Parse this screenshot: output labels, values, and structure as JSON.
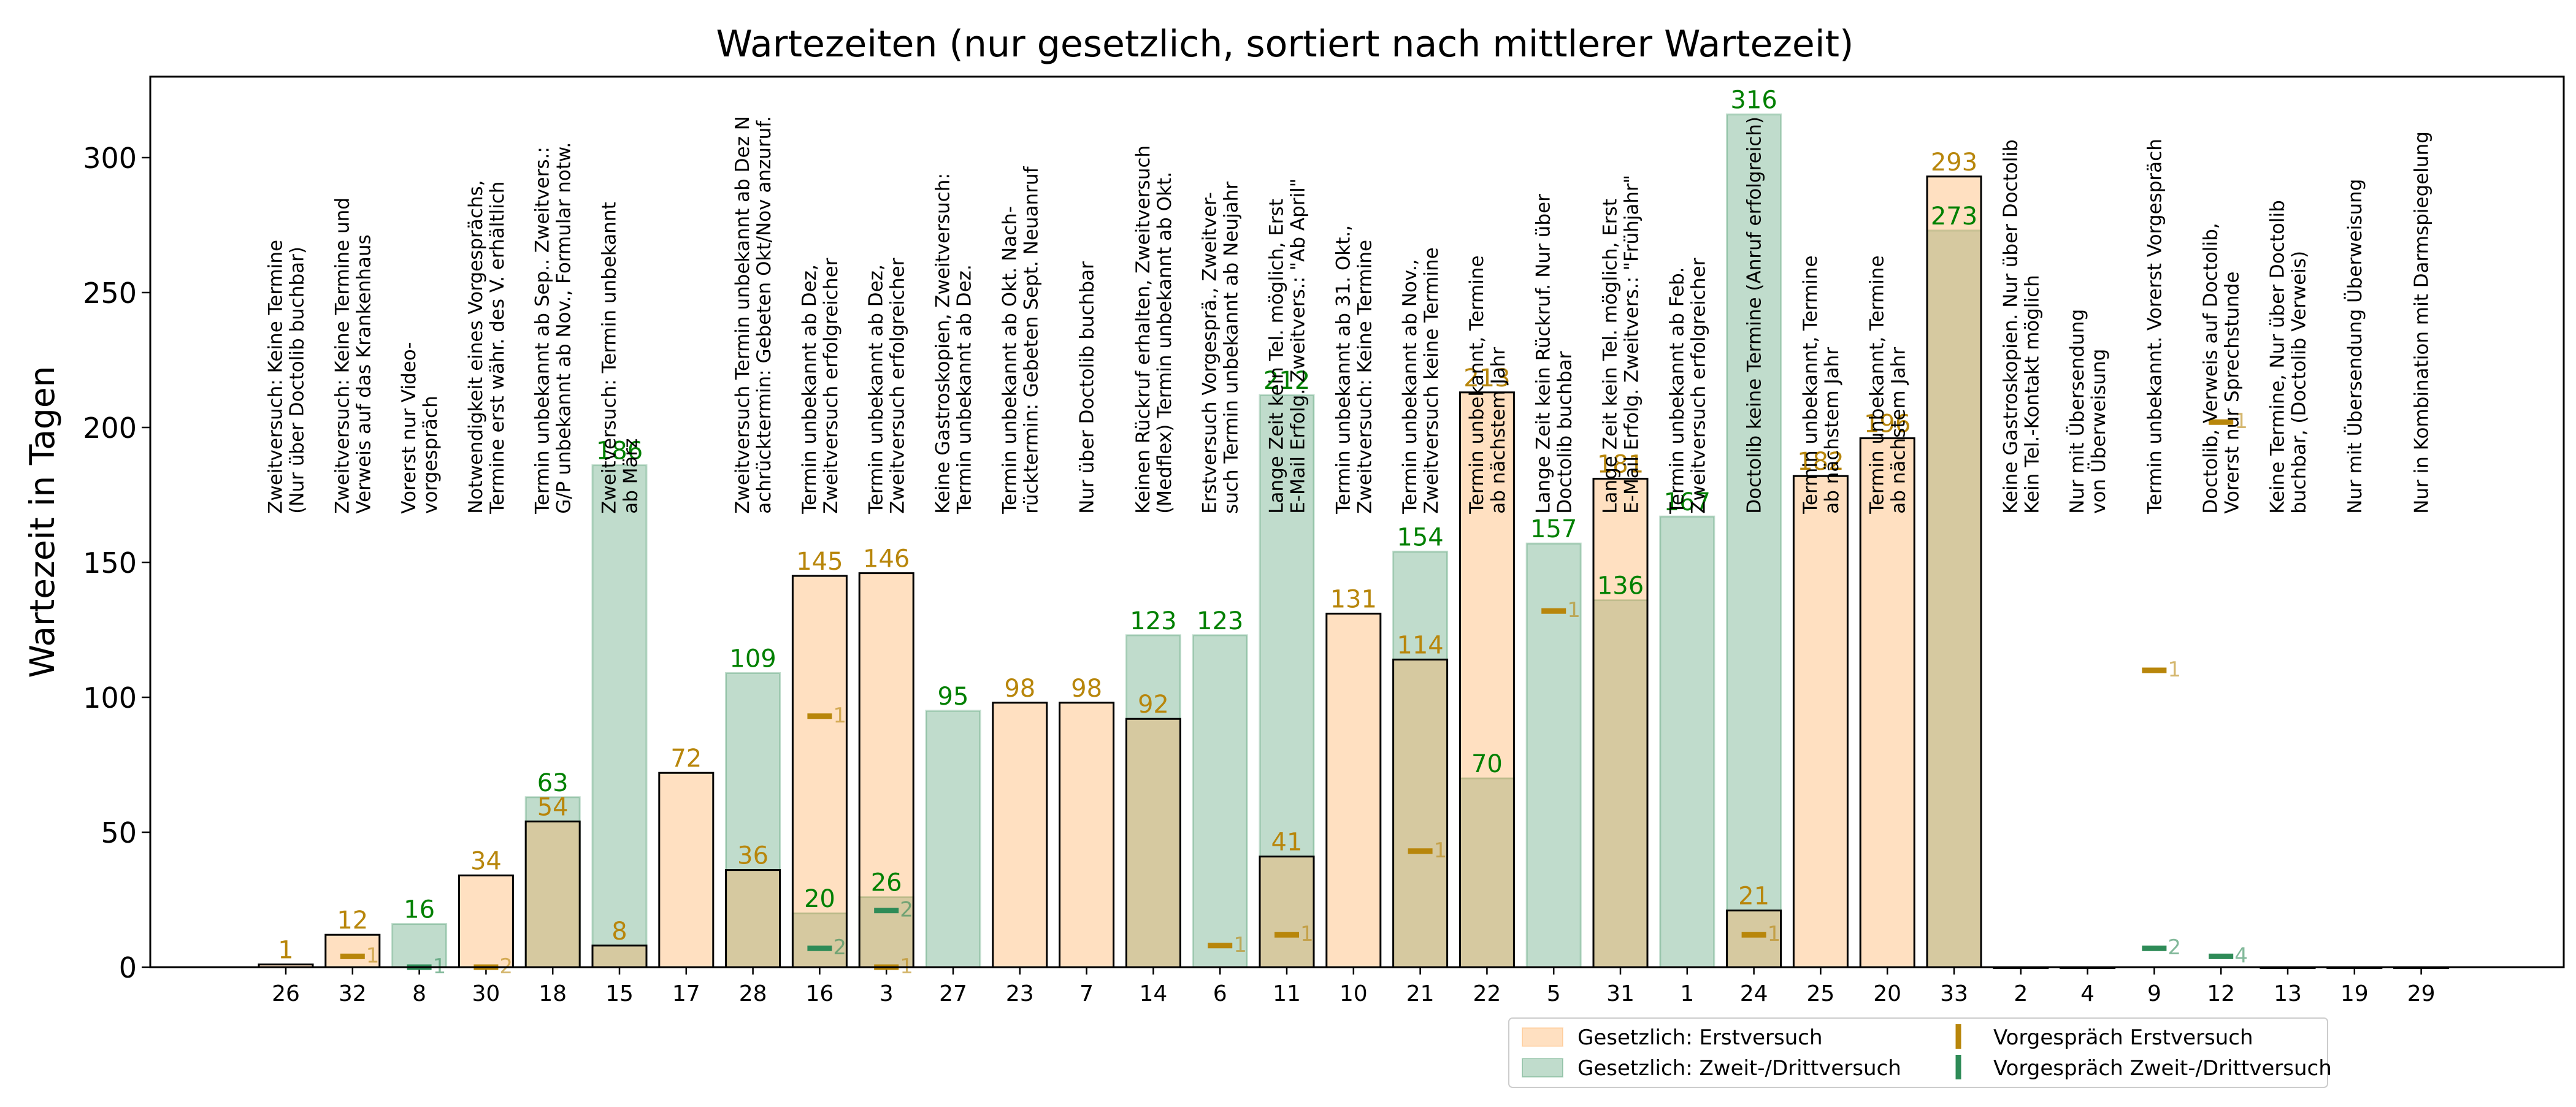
{
  "chart_data": {
    "type": "bar",
    "title": "Wartezeiten (nur gesetzlich, sortiert nach mittlerer Wartezeit)",
    "ylabel": "Wartezeit in Tagen",
    "xlabel": "",
    "ylim": [
      0,
      330
    ],
    "yticks": [
      0,
      50,
      100,
      150,
      200,
      250,
      300
    ],
    "grid": false,
    "legend_position": "bottom-right",
    "colors": {
      "erst_fill": "#ffe4c4",
      "zweit_fill": "#bcdccb",
      "overlap_fill": "#c2c9a2",
      "erst_text": "#b8860b",
      "zweit_text": "#008000",
      "erst_marker": "#b8860b",
      "zweit_marker": "#2e8b57"
    },
    "categories": [
      "26",
      "32",
      "8",
      "30",
      "18",
      "15",
      "17",
      "28",
      "16",
      "3",
      "27",
      "23",
      "7",
      "14",
      "6",
      "11",
      "10",
      "21",
      "22",
      "5",
      "31",
      "1",
      "24",
      "25",
      "20",
      "33",
      "2",
      "4",
      "9",
      "12",
      "13",
      "19",
      "29"
    ],
    "series": [
      {
        "name": "Gesetzlich: Erstversuch",
        "values": [
          1,
          12,
          null,
          34,
          54,
          8,
          72,
          36,
          145,
          146,
          null,
          98,
          98,
          92,
          null,
          41,
          131,
          114,
          213,
          null,
          181,
          null,
          21,
          182,
          196,
          293,
          0,
          0,
          null,
          null,
          0,
          0,
          0
        ]
      },
      {
        "name": "Gesetzlich: Zweit-/Drittversuch",
        "values": [
          null,
          null,
          16,
          null,
          63,
          186,
          null,
          109,
          20,
          26,
          95,
          null,
          null,
          123,
          123,
          212,
          null,
          154,
          70,
          157,
          136,
          167,
          316,
          null,
          null,
          273,
          null,
          null,
          null,
          null,
          null,
          null,
          null
        ]
      }
    ],
    "vorgespraech_erst": [
      {
        "x": "32",
        "value": 4,
        "count": "1"
      },
      {
        "x": "30",
        "value": 0,
        "count": "2"
      },
      {
        "x": "16",
        "value": 93,
        "count": "1"
      },
      {
        "x": "3",
        "value": 0,
        "count": "1"
      },
      {
        "x": "6",
        "value": 8,
        "count": "1"
      },
      {
        "x": "11",
        "value": 12,
        "count": "1"
      },
      {
        "x": "21",
        "value": 43,
        "count": "1"
      },
      {
        "x": "5",
        "value": 132,
        "count": "1"
      },
      {
        "x": "24",
        "value": 12,
        "count": "1"
      },
      {
        "x": "9",
        "value": 110,
        "count": "1"
      },
      {
        "x": "12",
        "value": 202,
        "count": "1"
      }
    ],
    "vorgespraech_zweit": [
      {
        "x": "8",
        "value": 0,
        "count": "1"
      },
      {
        "x": "16",
        "value": 7,
        "count": "2"
      },
      {
        "x": "3",
        "value": 21,
        "count": "2"
      },
      {
        "x": "9",
        "value": 7,
        "count": "2"
      },
      {
        "x": "12",
        "value": 4,
        "count": "4"
      }
    ],
    "bar_labels": [
      {
        "x": "26",
        "text": "Zweitversuch: Keine Termine\n(Nur über Doctolib buchbar)"
      },
      {
        "x": "32",
        "text": "Zweitversuch: Keine Termine und\nVerweis auf das Krankenhaus"
      },
      {
        "x": "8",
        "text": "Vorerst nur Video-\nvorgespräch"
      },
      {
        "x": "30",
        "text": "Notwendigkeit eines Vorgesprächs,\nTermine erst währ. des V. erhältlich"
      },
      {
        "x": "18",
        "text": "Termin unbekannt ab Sep.. Zweitvers.:\nG/P unbekannt ab Nov., Formular notw."
      },
      {
        "x": "15",
        "text": "Zweitversuch: Termin unbekannt\nab März"
      },
      {
        "x": "28",
        "text": "Zweitversuch Termin unbekannt ab Dez N\nachrücktermin: Gebeten Okt/Nov anzuruf."
      },
      {
        "x": "16",
        "text": "Termin unbekannt ab Dez,\nZweitversuch erfolgreicher"
      },
      {
        "x": "3",
        "text": "Termin unbekannt ab Dez,\nZweitversuch erfolgreicher"
      },
      {
        "x": "27",
        "text": "Keine Gastroskopien, Zweitversuch:\nTermin unbekannt ab Dez."
      },
      {
        "x": "23",
        "text": "Termin unbekannt ab Okt. Nach-\nrücktermin: Gebeten Sept. Neuanruf"
      },
      {
        "x": "7",
        "text": "Nur über Doctolib buchbar"
      },
      {
        "x": "14",
        "text": "Keinen Rückruf erhalten, Zweitversuch\n(Medflex) Termin unbekannt ab Okt."
      },
      {
        "x": "6",
        "text": "Erstversuch Vorgesprä., Zweitver-\nsuch Termin unbekannt ab Neujahr"
      },
      {
        "x": "11",
        "text": "Lange Zeit kein Tel. möglich, Erst\nE-Mail Erfolg. Zweitvers.: \"Ab April\""
      },
      {
        "x": "10",
        "text": "Termin unbekannt ab 31. Okt.,\nZweitversuch: Keine Termine"
      },
      {
        "x": "21",
        "text": "Termin unbekannt ab Nov.,\nZweitversuch keine Termine"
      },
      {
        "x": "22",
        "text": "Termin unbekannt, Termine\nab nächstem Jahr"
      },
      {
        "x": "5",
        "text": "Lange Zeit kein Rückruf. Nur über\nDoctolib buchbar"
      },
      {
        "x": "31",
        "text": "Lange Zeit kein Tel. möglich, Erst\nE-Mail Erfolg. Zweitvers.: \"Frühjahr\""
      },
      {
        "x": "1",
        "text": "Termin unbekannt ab Feb.\nZweitversuch erfolgreicher"
      },
      {
        "x": "24",
        "text": "Doctolib keine Termine (Anruf erfolgreich)"
      },
      {
        "x": "25",
        "text": "Termin unbekannt, Termine\nab nächstem Jahr"
      },
      {
        "x": "20",
        "text": "Termin unbekannt, Termine\nab nächstem Jahr"
      },
      {
        "x": "2",
        "text": "Keine Gastroskopien. Nur über Doctolib\nKein Tel.-Kontakt möglich"
      },
      {
        "x": "4",
        "text": "Nur mit Übersendung\nvon Überweisung"
      },
      {
        "x": "9",
        "text": "Termin unbekannt. Vorerst Vorgespräch"
      },
      {
        "x": "12",
        "text": "Doctolib, Verweis auf Doctolib,\nVorerst nur Sprechstunde"
      },
      {
        "x": "13",
        "text": "Keine Termine, Nur über Doctolib\nbuchbar, (Doctolib Verweis)"
      },
      {
        "x": "19",
        "text": "Nur mit Übersendung Überweisung"
      },
      {
        "x": "29",
        "text": "Nur in Kombination mit Darmspiegelung"
      }
    ],
    "legend": [
      {
        "label": "Gesetzlich: Erstversuch",
        "kind": "patch",
        "color": "#ffe4c4"
      },
      {
        "label": "Gesetzlich: Zweit-/Drittversuch",
        "kind": "patch",
        "color": "#bcdccb"
      },
      {
        "label": "Vorgespräch Erstversuch",
        "kind": "marker",
        "color": "#b8860b"
      },
      {
        "label": "Vorgespräch Zweit-/Drittversuch",
        "kind": "marker",
        "color": "#2e8b57"
      }
    ]
  }
}
